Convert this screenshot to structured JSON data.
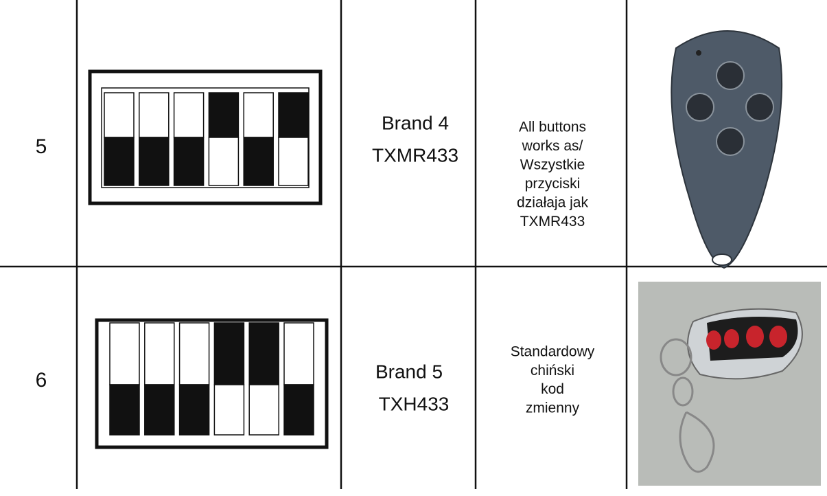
{
  "table": {
    "rows": [
      {
        "number": "5",
        "brand": [
          "Brand 4",
          "TXMR433"
        ],
        "description": [
          "All buttons",
          "works as/",
          "Wszystkie",
          "przyciski",
          "działaja jak",
          "TXMR433"
        ]
      },
      {
        "number": "6",
        "brand": [
          "Brand 5",
          "TXH433"
        ],
        "description": [
          "Standardowy",
          "chiński",
          "kod",
          "zmienny"
        ]
      }
    ]
  }
}
